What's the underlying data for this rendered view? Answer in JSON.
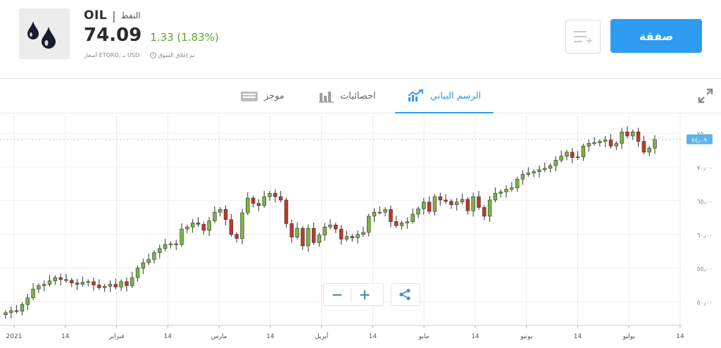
{
  "instrument": {
    "symbol": "OIL",
    "separator": "|",
    "name": "النفط",
    "price": "74.09",
    "change": "1.33 (1.83%)",
    "price_source": "أسعار ETORO, بـ USD",
    "market_status": "تم إغلاق السوق"
  },
  "actions": {
    "trade_label": "صفقة",
    "watchlist_icon": "add-to-list-icon"
  },
  "tabs": [
    {
      "label": "الرسم البياني",
      "icon": "chart-trend-icon",
      "active": true
    },
    {
      "label": "احصائيات",
      "icon": "bar-stats-icon",
      "active": false
    },
    {
      "label": "موجز",
      "icon": "feed-icon",
      "active": false
    }
  ],
  "chart_controls": {
    "zoom_out": "−",
    "zoom_in": "+",
    "share_icon": "share-icon"
  },
  "colors": {
    "up": "#7cb342",
    "down": "#c0392b",
    "accent": "#2d9cf0",
    "price_tag": "#5ab3e8"
  },
  "chart_data": {
    "type": "candlestick",
    "current_price_label": "٧٤٫٠٩",
    "y_ticks": [
      {
        "value": 50,
        "label": "٥٠٫٠٠"
      },
      {
        "value": 55,
        "label": "٥٥٫٠٠"
      },
      {
        "value": 60,
        "label": "٦٠٫٠٠"
      },
      {
        "value": 65,
        "label": "٦٥٫٠٠"
      },
      {
        "value": 70,
        "label": "٧٠٫٠٠"
      },
      {
        "value": 75,
        "label": "٧٥٫٠٠"
      }
    ],
    "x_ticks": [
      "2021",
      "14",
      "فبراير",
      "14",
      "مارس",
      "14",
      "أبريل",
      "14",
      "مايو",
      "14",
      "يونيو",
      "14",
      "يوليو",
      "14"
    ],
    "ylim": [
      46.5,
      77
    ],
    "closes": [
      48.4,
      48.7,
      48.6,
      49.6,
      50.6,
      51.9,
      52.4,
      52.6,
      53.1,
      53.6,
      53.3,
      53.2,
      52.8,
      52.6,
      52.9,
      53.0,
      52.5,
      52.1,
      52.3,
      52.6,
      52.2,
      53.0,
      52.4,
      53.6,
      55.0,
      55.8,
      56.3,
      57.3,
      57.9,
      58.5,
      58.6,
      58.5,
      60.8,
      61.1,
      61.7,
      61.5,
      60.6,
      62.0,
      63.3,
      63.7,
      62.2,
      60.0,
      59.4,
      63.2,
      65.4,
      64.6,
      64.3,
      65.6,
      66.1,
      65.6,
      65.1,
      61.6,
      59.6,
      60.9,
      58.3,
      60.9,
      58.8,
      59.9,
      61.1,
      61.4,
      60.8,
      59.3,
      59.7,
      59.5,
      60.0,
      60.3,
      62.7,
      63.3,
      63.3,
      63.7,
      61.9,
      61.3,
      61.7,
      61.9,
      63.0,
      63.8,
      64.8,
      63.4,
      65.6,
      65.1,
      64.9,
      64.4,
      64.8,
      65.2,
      63.5,
      65.6,
      64.0,
      62.7,
      65.1,
      66.1,
      66.3,
      66.7,
      66.9,
      68.2,
      68.9,
      69.1,
      69.3,
      69.6,
      69.8,
      70.2,
      71.0,
      71.6,
      72.2,
      71.4,
      71.5,
      73.1,
      73.5,
      73.6,
      73.8,
      74.0,
      73.1,
      73.5,
      75.2,
      74.6,
      75.2,
      73.8,
      72.2,
      72.8,
      74.1
    ],
    "opens": [
      48.1,
      48.4,
      48.7,
      48.6,
      49.6,
      50.6,
      51.9,
      52.4,
      52.6,
      53.1,
      53.6,
      53.3,
      53.2,
      52.8,
      52.6,
      52.9,
      53.0,
      52.5,
      52.1,
      52.3,
      52.6,
      52.2,
      53.0,
      52.4,
      53.6,
      55.0,
      55.8,
      56.3,
      57.3,
      57.9,
      58.5,
      58.6,
      58.5,
      60.8,
      61.1,
      61.7,
      61.5,
      60.6,
      62.0,
      63.3,
      63.7,
      62.2,
      60.0,
      59.4,
      63.2,
      65.4,
      64.6,
      64.3,
      65.6,
      66.1,
      65.6,
      65.1,
      61.6,
      59.6,
      60.9,
      58.3,
      60.9,
      58.8,
      59.9,
      61.1,
      61.4,
      60.8,
      59.3,
      59.7,
      59.5,
      60.0,
      60.3,
      62.7,
      63.3,
      63.3,
      63.7,
      61.9,
      61.3,
      61.7,
      61.9,
      63.0,
      63.8,
      64.8,
      63.4,
      65.6,
      65.1,
      64.9,
      64.4,
      64.8,
      65.2,
      63.5,
      65.6,
      64.0,
      62.7,
      65.1,
      66.1,
      66.3,
      66.7,
      66.9,
      68.2,
      68.9,
      69.1,
      69.3,
      69.6,
      69.8,
      70.2,
      71.0,
      71.6,
      72.2,
      71.4,
      71.5,
      73.1,
      73.5,
      73.6,
      73.8,
      74.0,
      73.1,
      73.5,
      75.2,
      74.6,
      75.2,
      73.8,
      72.2,
      72.8
    ]
  }
}
